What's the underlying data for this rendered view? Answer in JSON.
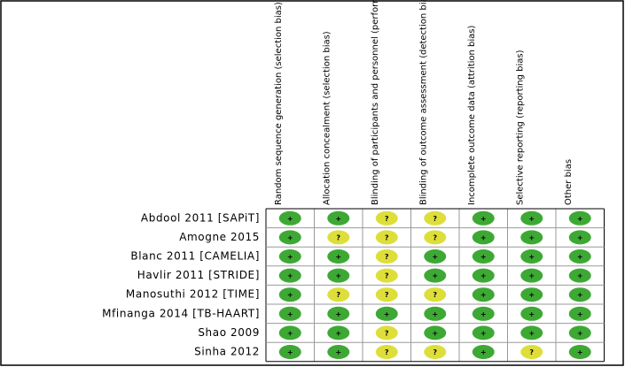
{
  "table": {
    "columns": [
      "Random sequence generation (selection bias)",
      "Allocation concealment (selection bias)",
      "Blinding of participants and personnel (performance bias)",
      "Blinding of outcome assessment (detection bias)",
      "Incomplete outcome data (attrition bias)",
      "Selective reporting (reporting bias)",
      "Other bias"
    ],
    "rows": [
      {
        "label": "Abdool 2011 [SAPiT]",
        "cells": [
          "+",
          "+",
          "?",
          "?",
          "+",
          "+",
          "+"
        ]
      },
      {
        "label": "Amogne 2015",
        "cells": [
          "+",
          "?",
          "?",
          "?",
          "+",
          "+",
          "+"
        ]
      },
      {
        "label": "Blanc 2011 [CAMELIA]",
        "cells": [
          "+",
          "+",
          "?",
          "+",
          "+",
          "+",
          "+"
        ]
      },
      {
        "label": "Havlir 2011 [STRIDE]",
        "cells": [
          "+",
          "+",
          "?",
          "+",
          "+",
          "+",
          "+"
        ]
      },
      {
        "label": "Manosuthi 2012 [TIME]",
        "cells": [
          "+",
          "?",
          "?",
          "?",
          "+",
          "+",
          "+"
        ]
      },
      {
        "label": "Mfinanga 2014 [TB-HAART]",
        "cells": [
          "+",
          "+",
          "+",
          "+",
          "+",
          "+",
          "+"
        ]
      },
      {
        "label": "Shao 2009",
        "cells": [
          "+",
          "+",
          "?",
          "+",
          "+",
          "+",
          "+"
        ]
      },
      {
        "label": "Sinha 2012",
        "cells": [
          "+",
          "+",
          "?",
          "?",
          "+",
          "?",
          "+"
        ]
      }
    ]
  }
}
